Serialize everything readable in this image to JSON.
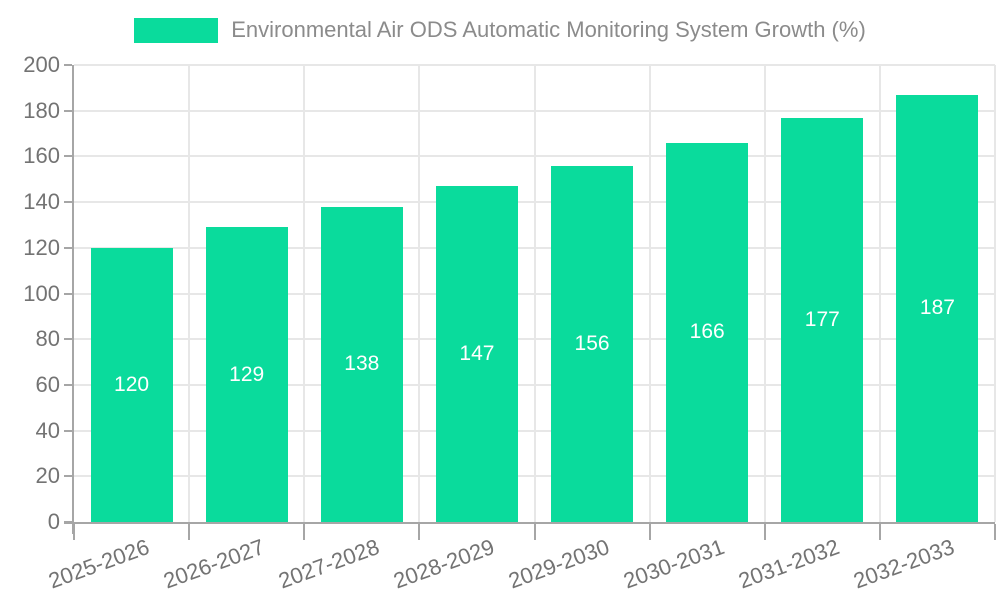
{
  "chart_data": {
    "type": "bar",
    "title": "Environmental Air ODS Automatic Monitoring System Growth (%)",
    "categories": [
      "2025-2026",
      "2026-2027",
      "2027-2028",
      "2028-2029",
      "2029-2030",
      "2030-2031",
      "2031-2032",
      "2032-2033"
    ],
    "series": [
      {
        "name": "Environmental Air ODS Automatic Monitoring System Growth (%)",
        "values": [
          120,
          129,
          138,
          147,
          156,
          166,
          177,
          187
        ],
        "color": "#0adb9c"
      }
    ],
    "xlabel": "",
    "ylabel": "",
    "ylim": [
      0,
      200
    ],
    "y_tick_step": 20,
    "y_tick_labels": [
      "0",
      "20",
      "40",
      "60",
      "80",
      "100",
      "120",
      "140",
      "160",
      "180",
      "200"
    ],
    "grid": true,
    "legend_position": "top",
    "value_label_position": "inside-center",
    "x_label_rotation_deg": -20
  },
  "legend": {
    "items": [
      {
        "label": "Environmental Air ODS Automatic Monitoring System Growth (%)",
        "color": "#0adb9c"
      }
    ]
  },
  "colors": {
    "bar": "#0adb9c",
    "grid_line": "#e7e7e7",
    "axis_line": "#a6a6a6",
    "axis_text": "#737373",
    "legend_text": "#8b8b8b",
    "value_label_text": "#ffffff",
    "background": "#ffffff"
  }
}
